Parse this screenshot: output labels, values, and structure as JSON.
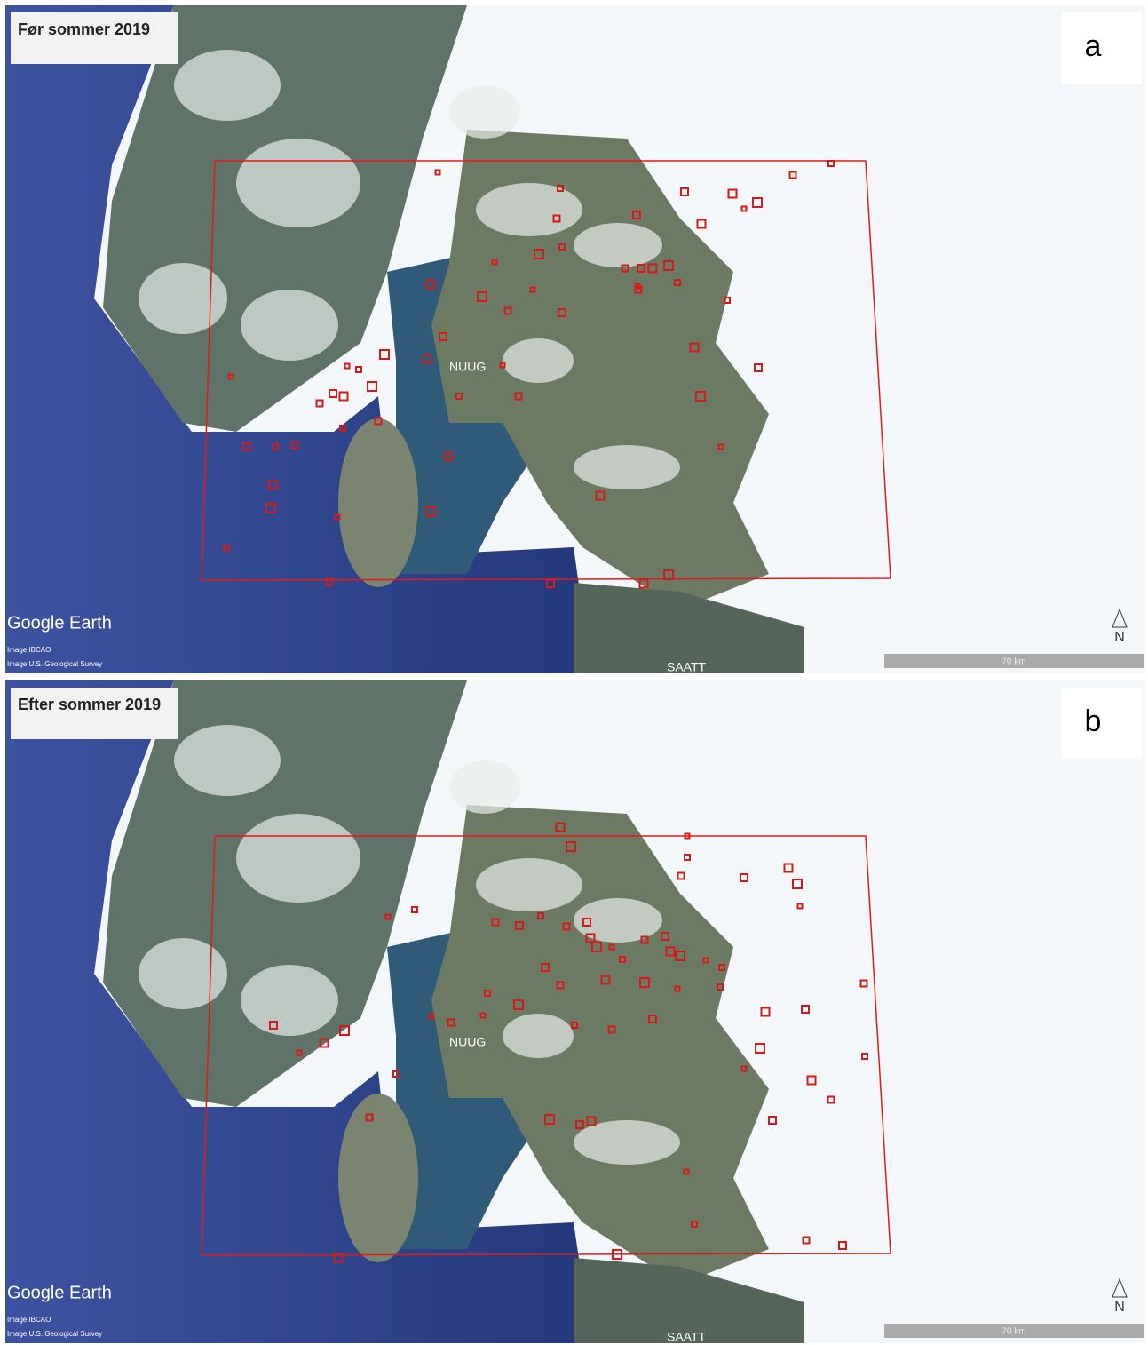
{
  "panels": [
    {
      "caption": "Før sommer 2019",
      "letter": "a"
    },
    {
      "caption": "Efter sommer 2019",
      "letter": "b"
    }
  ],
  "brand": "Google Earth",
  "credits": [
    "Image IBCAO",
    "Image U.S. Geological Survey"
  ],
  "places": [
    "NUUG",
    "SAATT"
  ],
  "scale": "70 km",
  "north": "N"
}
